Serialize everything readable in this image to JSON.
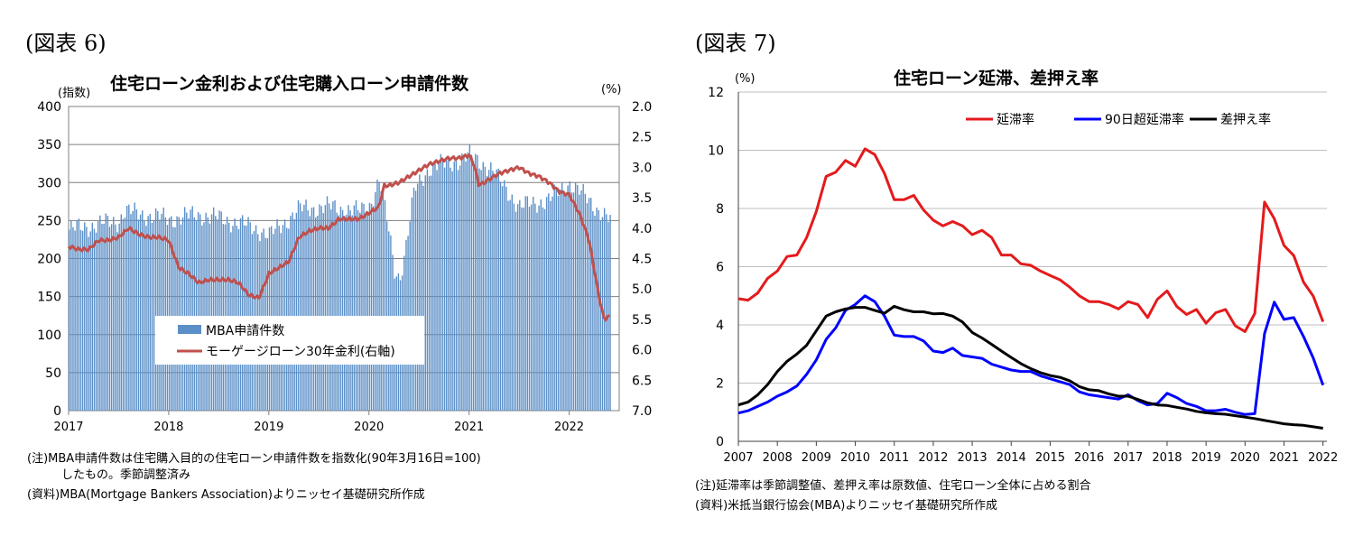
{
  "figures": [
    {
      "label": "(図表 6)",
      "title": "住宅ローン金利および住宅購入ローン申請件数",
      "y_left_unit": "(指数)",
      "y_right_unit": "(%)",
      "notes": [
        "(注)MBA申請件数は住宅購入目的の住宅ローン申請件数を指数化(90年3月16日=100)",
        "したもの。季節調整済み",
        "(資料)MBA(Mortgage Bankers Association)よりニッセイ基礎研究所作成"
      ]
    },
    {
      "label": "(図表 7)",
      "title": "住宅ローン延滞、差押え率",
      "y_unit": "(%)",
      "notes": [
        "(注)延滞率は季節調整値、差押え率は原数値、住宅ローン全体に占める割合",
        "(資料)米抵当銀行協会(MBA)よりニッセイ基礎研究所作成"
      ]
    }
  ],
  "chart_data": [
    {
      "type": "bar",
      "x_ticks": [
        "2017",
        "2018",
        "2019",
        "2020",
        "2021",
        "2022"
      ],
      "y_left": {
        "range": [
          0,
          400
        ],
        "ticks": [
          "0",
          "50",
          "100",
          "150",
          "200",
          "250",
          "300",
          "350",
          "400"
        ]
      },
      "y_right": {
        "range": [
          2.0,
          7.0
        ],
        "inverted": true,
        "ticks": [
          "2.0",
          "2.5",
          "3.0",
          "3.5",
          "4.0",
          "4.5",
          "5.0",
          "5.5",
          "6.0",
          "6.5",
          "7.0"
        ]
      },
      "x_range": [
        2017.0,
        2022.5
      ],
      "grid": true,
      "legend_position": "lower-center",
      "series": [
        {
          "name": "MBA申請件数",
          "kind": "bar",
          "axis": "left",
          "color": "#5b8fc7",
          "x": [
            2017.0,
            2017.5,
            2017.55,
            2018.0,
            2018.3,
            2018.6,
            2018.9,
            2019.0,
            2019.3,
            2019.6,
            2019.9,
            2020.0,
            2020.1,
            2020.2,
            2020.25,
            2020.3,
            2020.35,
            2020.45,
            2020.6,
            2020.8,
            2021.0,
            2021.2,
            2021.5,
            2021.8,
            2022.0,
            2022.2,
            2022.4
          ],
          "y": [
            238,
            250,
            262,
            252,
            258,
            250,
            238,
            230,
            265,
            268,
            262,
            270,
            305,
            230,
            185,
            175,
            205,
            290,
            320,
            325,
            335,
            320,
            268,
            278,
            300,
            275,
            250
          ]
        },
        {
          "name": "モーゲージローン30年金利(右軸)",
          "kind": "line",
          "axis": "right",
          "color": "#c0504d",
          "x": [
            2017.0,
            2017.1,
            2017.2,
            2017.3,
            2017.4,
            2017.5,
            2017.6,
            2017.7,
            2017.8,
            2017.9,
            2018.0,
            2018.1,
            2018.2,
            2018.3,
            2018.4,
            2018.5,
            2018.6,
            2018.7,
            2018.8,
            2018.9,
            2019.0,
            2019.1,
            2019.2,
            2019.3,
            2019.4,
            2019.5,
            2019.6,
            2019.7,
            2019.8,
            2019.9,
            2020.0,
            2020.1,
            2020.15,
            2020.2,
            2020.3,
            2020.4,
            2020.5,
            2020.6,
            2020.7,
            2020.8,
            2020.9,
            2021.0,
            2021.05,
            2021.1,
            2021.2,
            2021.3,
            2021.4,
            2021.5,
            2021.6,
            2021.7,
            2021.8,
            2021.9,
            2022.0,
            2022.1,
            2022.2,
            2022.3,
            2022.35,
            2022.4
          ],
          "y": [
            4.3,
            4.35,
            4.35,
            4.2,
            4.2,
            4.15,
            4.0,
            4.1,
            4.15,
            4.15,
            4.2,
            4.65,
            4.75,
            4.9,
            4.85,
            4.85,
            4.85,
            4.9,
            5.1,
            5.15,
            4.75,
            4.65,
            4.55,
            4.15,
            4.05,
            4.0,
            4.0,
            3.85,
            3.85,
            3.85,
            3.75,
            3.65,
            3.3,
            3.3,
            3.25,
            3.15,
            3.05,
            2.95,
            2.9,
            2.85,
            2.85,
            2.8,
            2.95,
            3.3,
            3.2,
            3.1,
            3.05,
            3.0,
            3.1,
            3.15,
            3.25,
            3.4,
            3.45,
            3.75,
            4.2,
            5.15,
            5.5,
            5.45
          ]
        }
      ]
    },
    {
      "type": "line",
      "x_ticks": [
        "2007",
        "2008",
        "2009",
        "2010",
        "2011",
        "2012",
        "2013",
        "2014",
        "2015",
        "2016",
        "2017",
        "2018",
        "2019",
        "2020",
        "2021",
        "2022"
      ],
      "x_range": [
        2007.0,
        2022.1
      ],
      "y_range": [
        0,
        12
      ],
      "y_ticks": [
        "0",
        "2",
        "4",
        "6",
        "8",
        "10",
        "12"
      ],
      "grid": true,
      "legend_position": "top-right",
      "series": [
        {
          "name": "延滞率",
          "color": "#e41a1c",
          "x": [
            2007.0,
            2007.25,
            2007.5,
            2007.75,
            2008.0,
            2008.25,
            2008.5,
            2008.75,
            2009.0,
            2009.25,
            2009.5,
            2009.75,
            2010.0,
            2010.25,
            2010.5,
            2010.75,
            2011.0,
            2011.25,
            2011.5,
            2011.75,
            2012.0,
            2012.25,
            2012.5,
            2012.75,
            2013.0,
            2013.25,
            2013.5,
            2013.75,
            2014.0,
            2014.25,
            2014.5,
            2014.75,
            2015.0,
            2015.25,
            2015.5,
            2015.75,
            2016.0,
            2016.25,
            2016.5,
            2016.75,
            2017.0,
            2017.25,
            2017.5,
            2017.75,
            2018.0,
            2018.25,
            2018.5,
            2018.75,
            2019.0,
            2019.25,
            2019.5,
            2019.75,
            2020.0,
            2020.25,
            2020.5,
            2020.75,
            2021.0,
            2021.25,
            2021.5,
            2021.75,
            2022.0
          ],
          "y": [
            4.9,
            4.85,
            5.1,
            5.6,
            5.85,
            6.35,
            6.4,
            7.0,
            7.9,
            9.1,
            9.25,
            9.65,
            9.45,
            10.05,
            9.85,
            9.2,
            8.3,
            8.3,
            8.45,
            7.95,
            7.6,
            7.4,
            7.55,
            7.4,
            7.1,
            7.25,
            7.0,
            6.4,
            6.4,
            6.1,
            6.05,
            5.85,
            5.7,
            5.55,
            5.3,
            5.0,
            4.8,
            4.8,
            4.7,
            4.55,
            4.8,
            4.7,
            4.25,
            4.88,
            5.17,
            4.63,
            4.36,
            4.53,
            4.06,
            4.42,
            4.53,
            3.97,
            3.77,
            4.39,
            8.22,
            7.65,
            6.73,
            6.38,
            5.47,
            4.99,
            4.11
          ]
        },
        {
          "name": "90日超延滞率",
          "color": "#0000ff",
          "x": [
            2007.0,
            2007.25,
            2007.5,
            2007.75,
            2008.0,
            2008.25,
            2008.5,
            2008.75,
            2009.0,
            2009.25,
            2009.5,
            2009.75,
            2010.0,
            2010.25,
            2010.5,
            2010.75,
            2011.0,
            2011.25,
            2011.5,
            2011.75,
            2012.0,
            2012.25,
            2012.5,
            2012.75,
            2013.0,
            2013.25,
            2013.5,
            2013.75,
            2014.0,
            2014.25,
            2014.5,
            2014.75,
            2015.0,
            2015.25,
            2015.5,
            2015.75,
            2016.0,
            2016.25,
            2016.5,
            2016.75,
            2017.0,
            2017.25,
            2017.5,
            2017.75,
            2018.0,
            2018.25,
            2018.5,
            2018.75,
            2019.0,
            2019.25,
            2019.5,
            2019.75,
            2020.0,
            2020.25,
            2020.5,
            2020.75,
            2021.0,
            2021.25,
            2021.5,
            2021.75,
            2022.0
          ],
          "y": [
            0.97,
            1.05,
            1.2,
            1.35,
            1.55,
            1.7,
            1.9,
            2.3,
            2.8,
            3.5,
            3.9,
            4.5,
            4.7,
            5.0,
            4.8,
            4.3,
            3.65,
            3.6,
            3.6,
            3.45,
            3.1,
            3.05,
            3.2,
            2.95,
            2.9,
            2.85,
            2.65,
            2.55,
            2.45,
            2.4,
            2.4,
            2.25,
            2.15,
            2.05,
            1.95,
            1.7,
            1.6,
            1.55,
            1.5,
            1.45,
            1.6,
            1.4,
            1.25,
            1.3,
            1.65,
            1.5,
            1.3,
            1.2,
            1.05,
            1.05,
            1.1,
            1.0,
            0.92,
            0.95,
            3.7,
            4.78,
            4.19,
            4.25,
            3.6,
            2.86,
            1.93
          ]
        },
        {
          "name": "差押え率",
          "color": "#000000",
          "x": [
            2007.0,
            2007.25,
            2007.5,
            2007.75,
            2008.0,
            2008.25,
            2008.5,
            2008.75,
            2009.0,
            2009.25,
            2009.5,
            2009.75,
            2010.0,
            2010.25,
            2010.5,
            2010.75,
            2011.0,
            2011.25,
            2011.5,
            2011.75,
            2012.0,
            2012.25,
            2012.5,
            2012.75,
            2013.0,
            2013.25,
            2013.5,
            2013.75,
            2014.0,
            2014.25,
            2014.5,
            2014.75,
            2015.0,
            2015.25,
            2015.5,
            2015.75,
            2016.0,
            2016.25,
            2016.5,
            2016.75,
            2017.0,
            2017.25,
            2017.5,
            2017.75,
            2018.0,
            2018.25,
            2018.5,
            2018.75,
            2019.0,
            2019.25,
            2019.5,
            2019.75,
            2020.0,
            2020.25,
            2020.5,
            2020.75,
            2021.0,
            2021.25,
            2021.5,
            2021.75,
            2022.0
          ],
          "y": [
            1.25,
            1.35,
            1.6,
            1.95,
            2.4,
            2.75,
            3.0,
            3.3,
            3.8,
            4.3,
            4.45,
            4.55,
            4.6,
            4.6,
            4.5,
            4.4,
            4.64,
            4.52,
            4.45,
            4.45,
            4.38,
            4.39,
            4.3,
            4.1,
            3.74,
            3.55,
            3.33,
            3.1,
            2.88,
            2.67,
            2.5,
            2.36,
            2.26,
            2.2,
            2.08,
            1.88,
            1.77,
            1.74,
            1.63,
            1.55,
            1.55,
            1.44,
            1.32,
            1.25,
            1.23,
            1.17,
            1.11,
            1.03,
            0.98,
            0.95,
            0.93,
            0.88,
            0.83,
            0.78,
            0.72,
            0.66,
            0.6,
            0.57,
            0.55,
            0.5,
            0.45
          ]
        }
      ]
    }
  ]
}
